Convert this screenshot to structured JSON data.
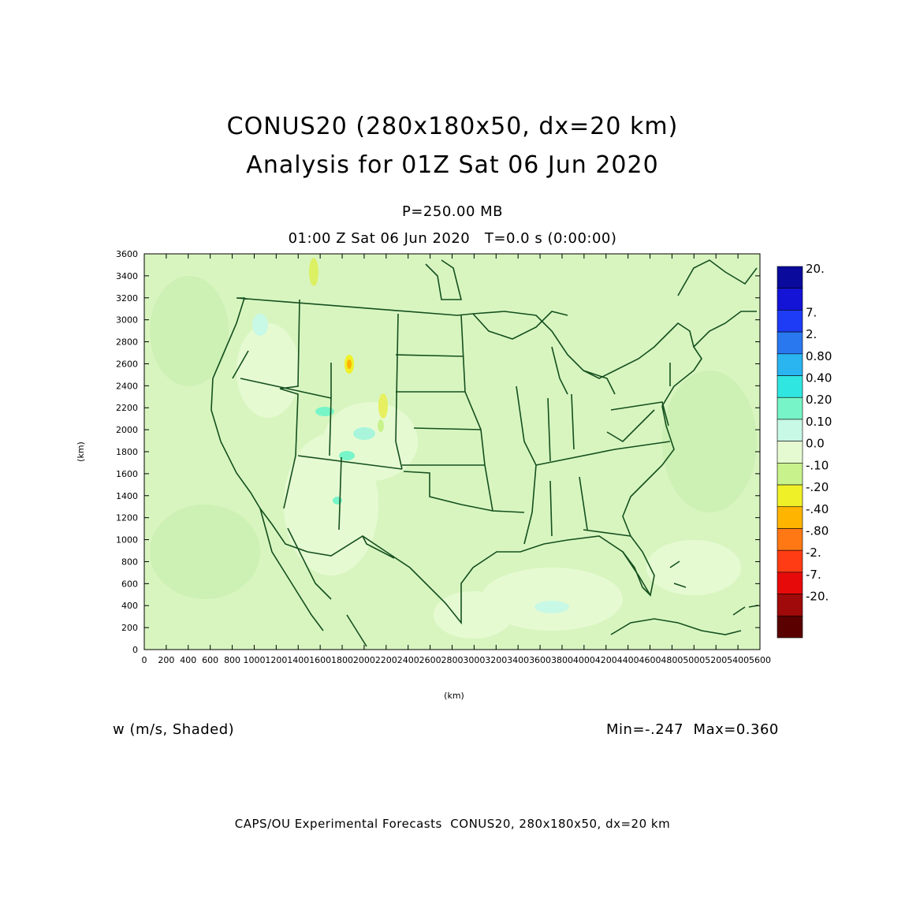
{
  "title": {
    "line1": "CONUS20 (280x180x50, dx=20 km)",
    "line2": "Analysis for 01Z Sat 06 Jun 2020"
  },
  "subtitle": {
    "level": "P=250.00 MB",
    "time": "01:00 Z Sat 06 Jun 2020   T=0.0 s (0:00:00)"
  },
  "axes": {
    "x_label": "(km)",
    "y_label": "(km)",
    "x_ticks": [
      "0",
      "200",
      "400",
      "600",
      "800",
      "1000",
      "1200",
      "1400",
      "1600",
      "1800",
      "2000",
      "2200",
      "2400",
      "2600",
      "2800",
      "3000",
      "3200",
      "3400",
      "3600",
      "3800",
      "4000",
      "4200",
      "4400",
      "4600",
      "4800",
      "5000",
      "5200",
      "5400",
      "5600"
    ],
    "y_ticks": [
      "0",
      "200",
      "400",
      "600",
      "800",
      "1000",
      "1200",
      "1400",
      "1600",
      "1800",
      "2000",
      "2200",
      "2400",
      "2600",
      "2800",
      "3000",
      "3200",
      "3400",
      "3600"
    ],
    "x_range": [
      0,
      5600
    ],
    "y_range": [
      0,
      3600
    ]
  },
  "colorbar": {
    "labels": [
      "20.",
      "7.",
      "2.",
      "0.80",
      "0.40",
      "0.20",
      "0.10",
      "0.0",
      "-.10",
      "-.20",
      "-.40",
      "-.80",
      "-2.",
      "-7.",
      "-20."
    ],
    "colors": [
      "#0a0a9c",
      "#1414d6",
      "#1e3cf5",
      "#2a78f0",
      "#2ab4f0",
      "#30e6e0",
      "#78f5c8",
      "#c8f8e6",
      "#e6fad2",
      "#c8f28c",
      "#f0f028",
      "#ffb400",
      "#ff7814",
      "#ff3c14",
      "#e60a0a",
      "#a00a0a",
      "#5a0000"
    ]
  },
  "field": {
    "label": "w (m/s, Shaded)",
    "minmax": "Min=-.247  Max=0.360"
  },
  "map": {
    "background_color": "#d8f5c0",
    "boundary_color": "#14501e"
  },
  "footer": "CAPS/OU Experimental Forecasts  CONUS20, 280x180x50, dx=20 km"
}
